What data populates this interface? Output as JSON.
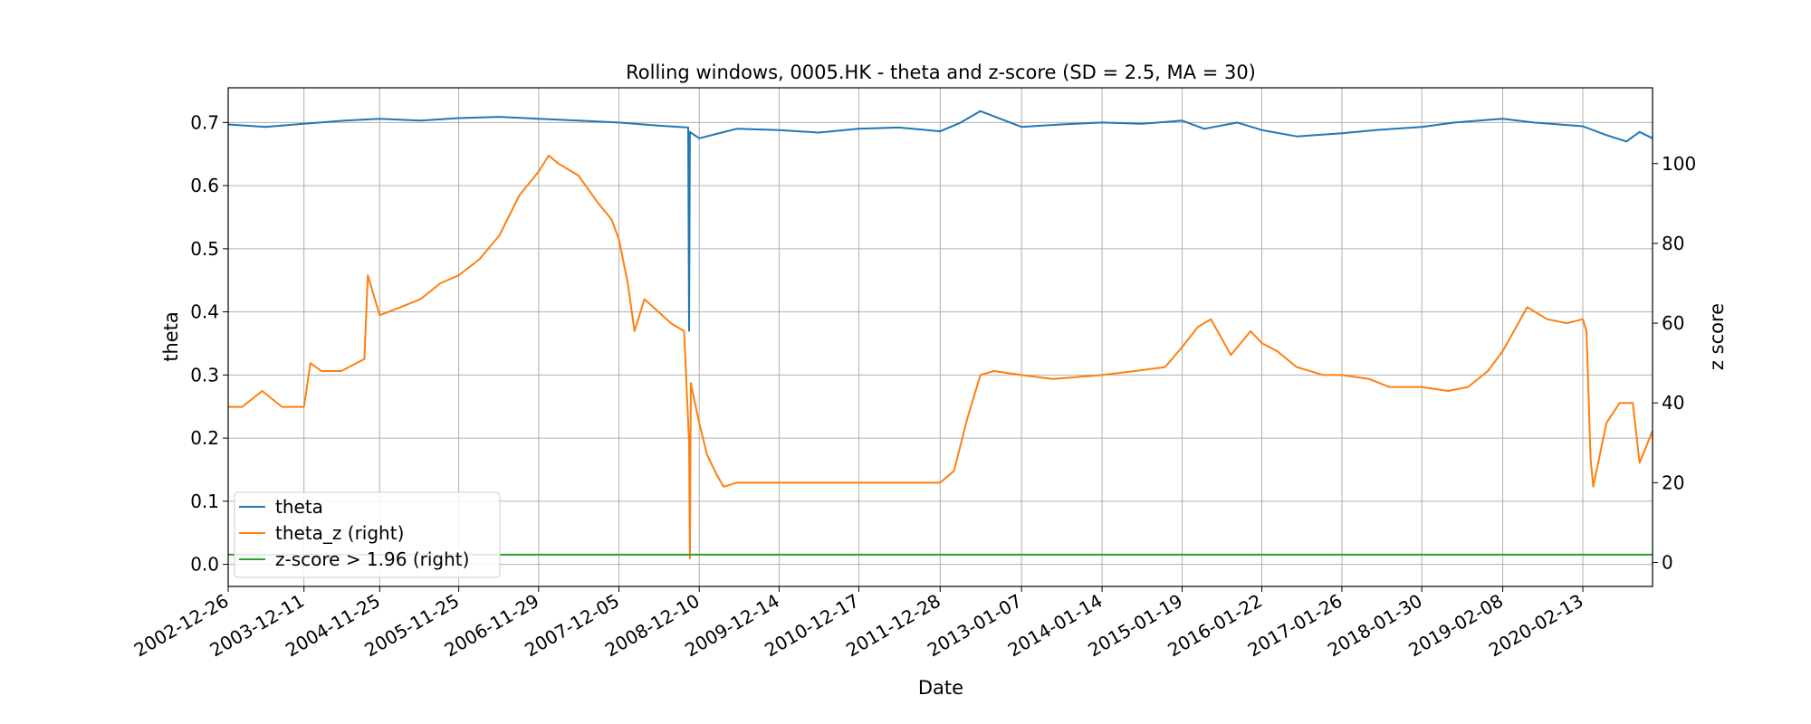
{
  "chart_data": {
    "type": "line",
    "title": "Rolling windows, 0005.HK - theta and z-score (SD = 2.5, MA = 30)",
    "xlabel": "Date",
    "ylabel_left": "theta",
    "ylabel_right": "z score",
    "x_tick_labels": [
      "2002-12-26",
      "2003-12-11",
      "2004-11-25",
      "2005-11-25",
      "2006-11-29",
      "2007-12-05",
      "2008-12-10",
      "2009-12-14",
      "2010-12-17",
      "2011-12-28",
      "2013-01-07",
      "2014-01-14",
      "2015-01-19",
      "2016-01-22",
      "2017-01-26",
      "2018-01-30",
      "2019-02-08",
      "2020-02-13"
    ],
    "x_range": [
      "2002-12-26",
      "2020-12-31"
    ],
    "y_left_range": [
      -0.035,
      0.755
    ],
    "y_left_ticks": [
      "0.0",
      "0.1",
      "0.2",
      "0.3",
      "0.4",
      "0.5",
      "0.6",
      "0.7"
    ],
    "y_right_range": [
      -6,
      119
    ],
    "y_right_ticks": [
      "0",
      "20",
      "40",
      "60",
      "80",
      "100"
    ],
    "grid": true,
    "legend_position": "bottom-left",
    "series": [
      {
        "name": "theta",
        "axis": "left",
        "color": "#1f77b4",
        "x": [
          "2002-12-26",
          "2003-06-15",
          "2003-12-11",
          "2004-06-15",
          "2004-11-25",
          "2005-06-01",
          "2005-11-25",
          "2006-06-01",
          "2006-11-29",
          "2007-06-01",
          "2007-12-05",
          "2008-06-01",
          "2008-10-20",
          "2008-10-24",
          "2008-10-28",
          "2008-12-10",
          "2009-03-01",
          "2009-06-01",
          "2009-12-14",
          "2010-06-15",
          "2010-12-17",
          "2011-06-20",
          "2011-12-28",
          "2012-04-01",
          "2012-07-01",
          "2013-01-07",
          "2013-07-10",
          "2014-01-14",
          "2014-07-15",
          "2015-01-19",
          "2015-05-01",
          "2015-10-01",
          "2016-01-22",
          "2016-07-01",
          "2017-01-26",
          "2017-07-01",
          "2018-01-30",
          "2018-07-01",
          "2019-02-08",
          "2019-07-01",
          "2020-02-13",
          "2020-06-01",
          "2020-09-01",
          "2020-11-01",
          "2020-12-31"
        ],
        "values": [
          0.697,
          0.693,
          0.698,
          0.703,
          0.706,
          0.703,
          0.707,
          0.709,
          0.706,
          0.703,
          0.7,
          0.695,
          0.692,
          0.37,
          0.685,
          0.675,
          0.682,
          0.69,
          0.688,
          0.684,
          0.69,
          0.692,
          0.686,
          0.7,
          0.718,
          0.693,
          0.697,
          0.7,
          0.698,
          0.703,
          0.69,
          0.7,
          0.688,
          0.678,
          0.683,
          0.688,
          0.693,
          0.7,
          0.706,
          0.7,
          0.694,
          0.68,
          0.67,
          0.685,
          0.675
        ]
      },
      {
        "name": "theta_z (right)",
        "axis": "right",
        "color": "#ff7f0e",
        "x": [
          "2002-12-26",
          "2003-03-01",
          "2003-06-01",
          "2003-09-01",
          "2003-12-11",
          "2004-01-10",
          "2004-03-01",
          "2004-06-01",
          "2004-09-15",
          "2004-10-01",
          "2004-11-25",
          "2005-03-01",
          "2005-06-01",
          "2005-09-01",
          "2005-11-25",
          "2006-03-01",
          "2006-06-01",
          "2006-09-01",
          "2006-11-29",
          "2007-01-15",
          "2007-03-01",
          "2007-06-01",
          "2007-09-01",
          "2007-11-01",
          "2007-12-05",
          "2008-01-15",
          "2008-02-15",
          "2008-04-01",
          "2008-06-01",
          "2008-08-01",
          "2008-10-01",
          "2008-10-24",
          "2008-10-28",
          "2008-11-01",
          "2008-12-10",
          "2009-01-15",
          "2009-03-01",
          "2009-04-01",
          "2009-06-01",
          "2009-12-14",
          "2010-06-15",
          "2010-12-17",
          "2011-06-20",
          "2011-12-28",
          "2012-03-01",
          "2012-05-01",
          "2012-07-01",
          "2012-09-01",
          "2013-01-07",
          "2013-06-01",
          "2014-01-14",
          "2014-06-15",
          "2014-11-01",
          "2015-01-19",
          "2015-04-01",
          "2015-06-01",
          "2015-09-01",
          "2015-12-01",
          "2016-01-22",
          "2016-04-01",
          "2016-07-01",
          "2016-11-01",
          "2017-01-26",
          "2017-06-01",
          "2017-09-01",
          "2018-01-30",
          "2018-06-01",
          "2018-09-01",
          "2018-12-01",
          "2019-02-08",
          "2019-06-01",
          "2019-09-01",
          "2019-12-01",
          "2020-02-13",
          "2020-03-01",
          "2020-03-20",
          "2020-04-01",
          "2020-06-01",
          "2020-08-01",
          "2020-10-01",
          "2020-11-01",
          "2020-12-31"
        ],
        "values": [
          39,
          39,
          43,
          39,
          39,
          50,
          48,
          48,
          51,
          72,
          62,
          64,
          66,
          70,
          72,
          76,
          82,
          92,
          98,
          102,
          100,
          97,
          90,
          86,
          81,
          70,
          58,
          66,
          63,
          60,
          58,
          30,
          1,
          45,
          35,
          27,
          22,
          19,
          20,
          20,
          20,
          20,
          20,
          20,
          23,
          36,
          47,
          48,
          47,
          46,
          47,
          48,
          49,
          54,
          59,
          61,
          52,
          58,
          55,
          53,
          49,
          47,
          47,
          46,
          44,
          44,
          43,
          44,
          48,
          53,
          64,
          61,
          60,
          61,
          58,
          26,
          19,
          35,
          40,
          40,
          25,
          33
        ]
      },
      {
        "name": "z-score > 1.96 (right)",
        "axis": "right",
        "color": "#2ca02c",
        "x": [
          "2002-12-26",
          "2020-12-31"
        ],
        "values": [
          1.96,
          1.96
        ]
      }
    ]
  }
}
